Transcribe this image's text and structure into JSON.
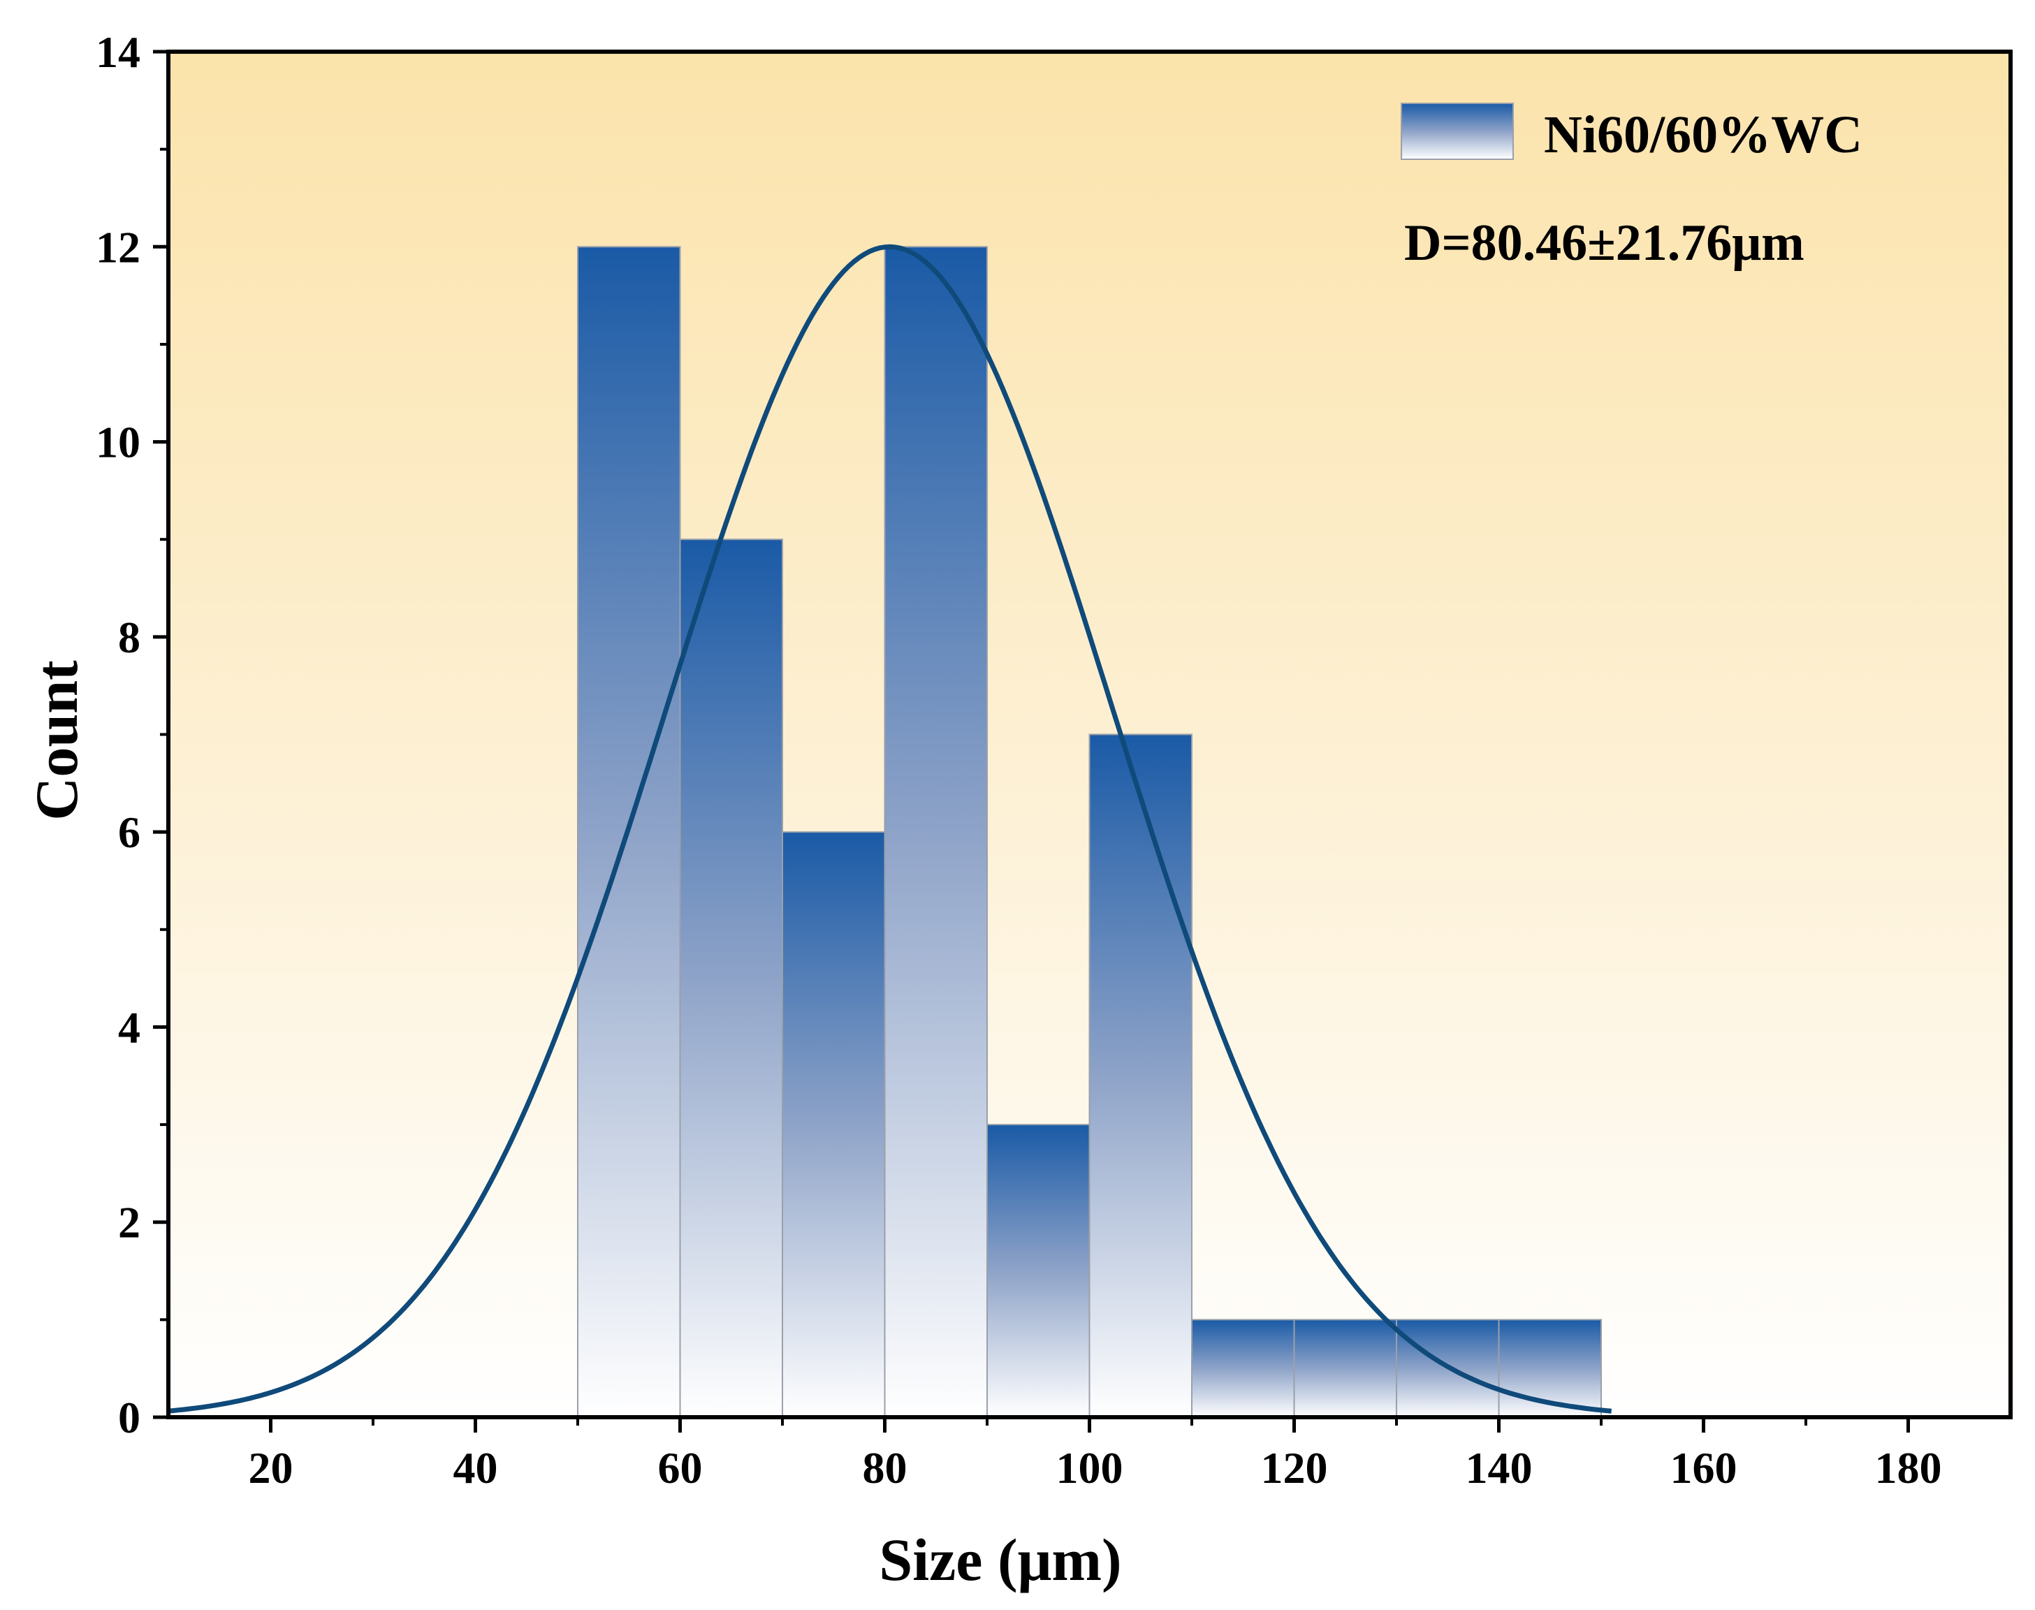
{
  "chart_data": {
    "type": "bar",
    "subtype": "histogram-with-normal-fit",
    "title": "",
    "xlabel": "Size (μm)",
    "ylabel": "Count",
    "xlim": [
      10,
      190
    ],
    "ylim": [
      0,
      14
    ],
    "xticks": [
      20,
      40,
      60,
      80,
      100,
      120,
      140,
      160,
      180
    ],
    "yticks": [
      0,
      2,
      4,
      6,
      8,
      10,
      12,
      14
    ],
    "grid": false,
    "legend_position": "top-right",
    "series": [
      {
        "name": "Ni60/60%WC",
        "bin_width": 10,
        "bins": [
          {
            "start": 50,
            "end": 60,
            "count": 12
          },
          {
            "start": 60,
            "end": 70,
            "count": 9
          },
          {
            "start": 70,
            "end": 80,
            "count": 6
          },
          {
            "start": 80,
            "end": 90,
            "count": 12
          },
          {
            "start": 90,
            "end": 100,
            "count": 3
          },
          {
            "start": 100,
            "end": 110,
            "count": 7
          },
          {
            "start": 110,
            "end": 120,
            "count": 1
          },
          {
            "start": 120,
            "end": 130,
            "count": 1
          },
          {
            "start": 130,
            "end": 140,
            "count": 1
          },
          {
            "start": 140,
            "end": 150,
            "count": 1
          }
        ]
      }
    ],
    "fit_curve": {
      "type": "normal",
      "mean": 80.46,
      "std": 21.76,
      "peak": 12,
      "x_range": [
        10,
        151
      ]
    },
    "annotation": "D=80.46±21.76μm",
    "colors": {
      "bar_top": "#1a5aa6",
      "bar_bottom": "#ffffff",
      "bar_edge": "#9aa0aa",
      "curve": "#0f4a7a",
      "bg_top": "#fbe3ab",
      "bg_bottom": "#ffffff",
      "axis": "#000000"
    }
  }
}
